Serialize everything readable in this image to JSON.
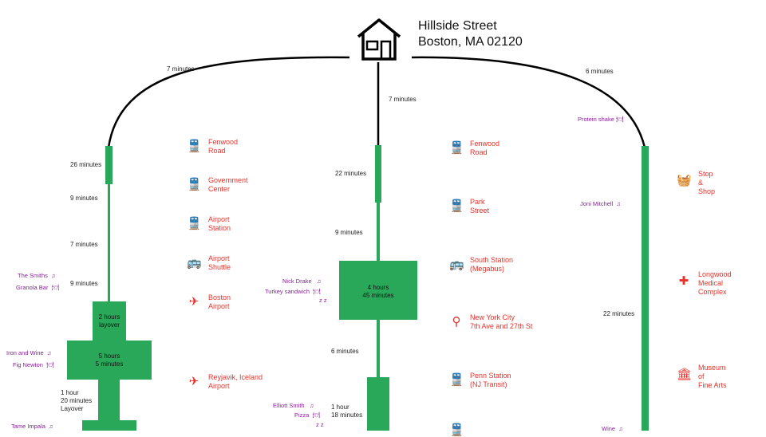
{
  "address": {
    "line1": "Hillside Street",
    "line2": "Boston, MA 02120"
  },
  "routes": {
    "left": {
      "top_time": "7 minutes",
      "segments": [
        "26 minutes",
        "9 minutes",
        "7 minutes",
        "9 minutes"
      ],
      "box1": "2 hours\nlayover",
      "box2": "5 hours\n5 minutes",
      "layover": "1 hour\n20 minutes\nLayover",
      "entertainment": [
        {
          "text": "The Smiths",
          "icon": "music-note-icon"
        },
        {
          "text": "Granola Bar",
          "icon": "food-icon"
        },
        {
          "text": "Iron and Wine",
          "icon": "music-note-icon"
        },
        {
          "text": "Fig Newton",
          "icon": "food-icon"
        },
        {
          "text": "Tame Impala",
          "icon": "music-note-icon"
        }
      ]
    },
    "middle": {
      "top_time": "7 minutes",
      "segments": [
        "22 minutes",
        "9 minutes",
        "6 minutes"
      ],
      "box1": "4 hours\n45 minutes",
      "box2": "1 hour\n18 minutes",
      "entertainment": [
        {
          "text": "Nick Drake",
          "icon": "music-note-icon"
        },
        {
          "text": "Turkey sandwich",
          "icon": "food-icon"
        },
        {
          "text": "z z",
          "icon": "sleep-icon"
        },
        {
          "text": "Elliott Smith",
          "icon": "music-note-icon"
        },
        {
          "text": "Pizza",
          "icon": "food-icon"
        },
        {
          "text": "z z",
          "icon": "sleep-icon"
        }
      ]
    },
    "right": {
      "top_time": "6 minutes",
      "segments": [
        "22 minutes"
      ],
      "entertainment": [
        {
          "text": "Protein shake",
          "icon": "food-icon"
        },
        {
          "text": "Joni Mitchell",
          "icon": "music-note-icon"
        },
        {
          "text": "Wine",
          "icon": "music-note-icon"
        }
      ]
    }
  },
  "stops": {
    "left": [
      {
        "label": "Fenwood\nRoad",
        "icon": "train-icon",
        "glyph": "🚆"
      },
      {
        "label": "Government\nCenter",
        "icon": "train-icon",
        "glyph": "🚆"
      },
      {
        "label": "Airport\nStation",
        "icon": "train-icon",
        "glyph": "🚆"
      },
      {
        "label": "Airport\nShuttle",
        "icon": "bus-icon",
        "glyph": "🚌"
      },
      {
        "label": "Boston\nAirport",
        "icon": "plane-icon",
        "glyph": "✈"
      },
      {
        "label": "Reyjavik, Iceland\nAirport",
        "icon": "plane-icon",
        "glyph": "✈"
      }
    ],
    "middle": [
      {
        "label": "Fenwood\nRoad",
        "icon": "train-icon",
        "glyph": "🚆"
      },
      {
        "label": "Park\nStreet",
        "icon": "train-icon",
        "glyph": "🚆"
      },
      {
        "label": "South Station\n(Megabus)",
        "icon": "bus-icon",
        "glyph": "🚌"
      },
      {
        "label": "New York City\n7th Ave and 27th St",
        "icon": "streetlamp-icon",
        "glyph": "⚲"
      },
      {
        "label": "Penn Station\n(NJ Transit)",
        "icon": "train-icon",
        "glyph": "🚆"
      }
    ],
    "right": [
      {
        "label": "Stop\n&\nShop",
        "icon": "basket-icon",
        "glyph": "🧺"
      },
      {
        "label": "Longwood\nMedical\nComplex",
        "icon": "medical-icon",
        "glyph": "✚"
      },
      {
        "label": "Museum\nof\nFine Arts",
        "icon": "museum-icon",
        "glyph": "🏛"
      }
    ]
  },
  "colors": {
    "bar": "#2aa85a",
    "stop": "#e8322b",
    "entertainment": "#8a1f9a"
  }
}
